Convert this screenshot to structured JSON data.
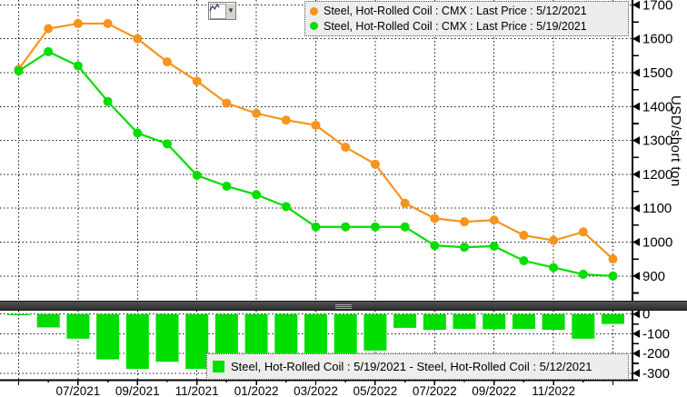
{
  "toolbar": {
    "chart_type_button": "line-chart-selector",
    "dropdown_glyph": "▼"
  },
  "y_axis_title": "USD/short ton",
  "chart_data": [
    {
      "type": "line",
      "title": "",
      "xlabel": "",
      "ylabel": "USD/short ton",
      "x": [
        "05/2021",
        "06/2021",
        "07/2021",
        "08/2021",
        "09/2021",
        "10/2021",
        "11/2021",
        "12/2021",
        "01/2022",
        "02/2022",
        "03/2022",
        "04/2022",
        "05/2022",
        "06/2022",
        "07/2022",
        "08/2022",
        "09/2022",
        "10/2022",
        "11/2022",
        "12/2022",
        "01/2023"
      ],
      "x_tick_labels": [
        "07/2021",
        "09/2021",
        "11/2021",
        "01/2022",
        "03/2022",
        "05/2022",
        "07/2022",
        "09/2022",
        "11/2022"
      ],
      "yticks": [
        1700,
        1600,
        1500,
        1400,
        1300,
        1200,
        1100,
        1000,
        900
      ],
      "ylim": [
        830,
        1715
      ],
      "grid": true,
      "legend_position": "top-right",
      "series": [
        {
          "name": "Steel, Hot-Rolled Coil : CMX : Last Price : 5/12/2021",
          "color": "#F7941E",
          "values": [
            1510,
            1630,
            1645,
            1645,
            1600,
            1532,
            1475,
            1410,
            1380,
            1360,
            1345,
            1280,
            1230,
            1115,
            1070,
            1060,
            1065,
            1020,
            1005,
            1030,
            950
          ]
        },
        {
          "name": "Steel, Hot-Rolled Coil : CMX : Last Price : 5/19/2021",
          "color": "#00DE00",
          "values": [
            1505,
            1562,
            1520,
            1415,
            1322,
            1290,
            1197,
            1165,
            1140,
            1105,
            1045,
            1045,
            1045,
            1045,
            990,
            985,
            988,
            945,
            925,
            905,
            900
          ]
        }
      ]
    },
    {
      "type": "bar",
      "name": "Steel, Hot-Rolled Coil : 5/19/2021 - Steel, Hot-Rolled Coil : 5/12/2021",
      "color": "#00DE00",
      "categories": [
        "05/2021",
        "06/2021",
        "07/2021",
        "08/2021",
        "09/2021",
        "10/2021",
        "11/2021",
        "12/2021",
        "01/2022",
        "02/2022",
        "03/2022",
        "04/2022",
        "05/2022",
        "06/2022",
        "07/2022",
        "08/2022",
        "09/2022",
        "10/2022",
        "11/2022",
        "12/2022",
        "01/2023"
      ],
      "values": [
        -5,
        -68,
        -125,
        -230,
        -278,
        -242,
        -278,
        -245,
        -240,
        -255,
        -300,
        -235,
        -185,
        -70,
        -80,
        -75,
        -77,
        -75,
        -80,
        -125,
        -50
      ],
      "yticks": [
        0,
        -100,
        -200,
        -300
      ],
      "ylim": [
        -333,
        17
      ],
      "grid": true,
      "legend_position": "bottom"
    }
  ]
}
